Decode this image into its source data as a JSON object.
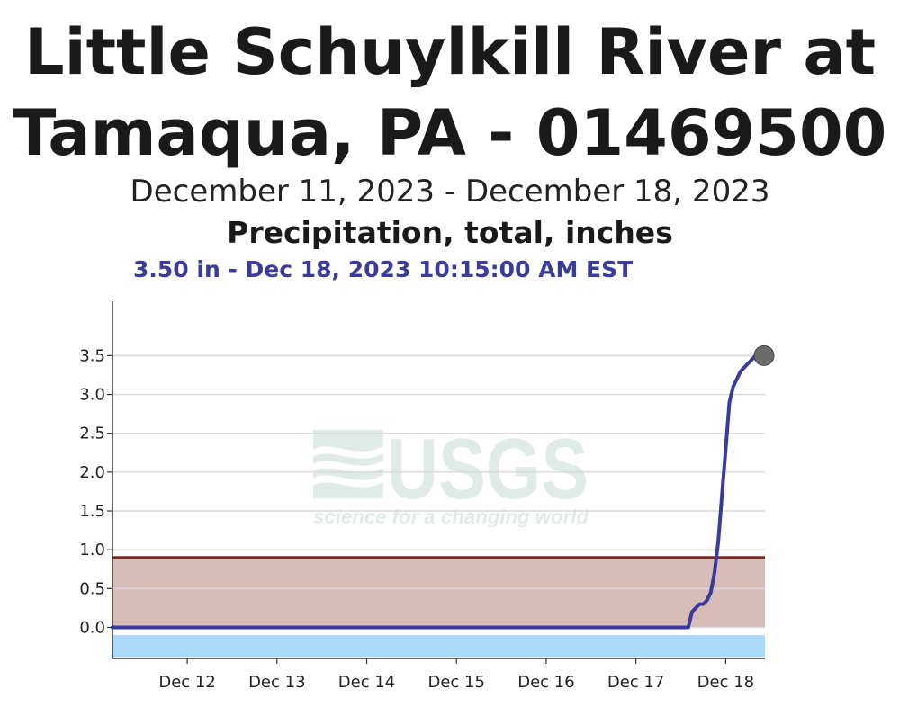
{
  "header": {
    "title_line1": "Little Schuylkill River at",
    "title_line2": "Tamaqua, PA - 01469500",
    "date_range": "December 11, 2023 - December 18, 2023",
    "parameter": "Precipitation, total, inches",
    "latest_value": "3.50 in - Dec 18, 2023 10:15:00 AM EST"
  },
  "watermark": {
    "logo_text": "USGS",
    "tagline": "science for a changing world"
  },
  "colors": {
    "series": "#3a3a9e",
    "threshold_line": "#7a2a1e",
    "threshold_fill": "#d4b5b0",
    "below_zero_band": "#a9d8fb",
    "grid": "#d9d9d9",
    "latest_dot": "#6b6b6b"
  },
  "chart_data": {
    "type": "line",
    "title": "Precipitation, total, inches",
    "xlabel": "",
    "ylabel": "",
    "ylim": [
      -0.4,
      4.2
    ],
    "yticks": [
      0.0,
      0.5,
      1.0,
      1.5,
      2.0,
      2.5,
      3.0,
      3.5
    ],
    "ytick_labels": [
      "0.0",
      "0.5",
      "1.0",
      "1.5",
      "2.0",
      "2.5",
      "3.0",
      "3.5"
    ],
    "xlim": [
      "2023-12-11T04:00",
      "2023-12-18T10:30"
    ],
    "xticks": [
      "2023-12-12T00:00",
      "2023-12-13T00:00",
      "2023-12-14T00:00",
      "2023-12-15T00:00",
      "2023-12-16T00:00",
      "2023-12-17T00:00",
      "2023-12-18T00:00"
    ],
    "xtick_labels": [
      "Dec 12",
      "Dec 13",
      "Dec 14",
      "Dec 15",
      "Dec 16",
      "Dec 17",
      "Dec 18"
    ],
    "grid": true,
    "threshold": {
      "value": 0.9,
      "fill_from": 0.0
    },
    "below_zero_band": [
      -0.38,
      -0.1
    ],
    "series": [
      {
        "x": [
          "2023-12-11T04:00",
          "2023-12-17T14:00",
          "2023-12-17T15:00",
          "2023-12-17T16:00",
          "2023-12-17T17:00",
          "2023-12-17T18:00",
          "2023-12-17T19:00",
          "2023-12-17T20:00",
          "2023-12-17T21:00",
          "2023-12-17T22:00",
          "2023-12-17T23:00",
          "2023-12-18T00:00",
          "2023-12-18T01:00",
          "2023-12-18T02:00",
          "2023-12-18T03:00",
          "2023-12-18T04:00",
          "2023-12-18T05:00",
          "2023-12-18T06:00",
          "2023-12-18T07:00",
          "2023-12-18T08:00",
          "2023-12-18T09:00",
          "2023-12-18T10:15"
        ],
        "y": [
          0.0,
          0.0,
          0.2,
          0.25,
          0.3,
          0.3,
          0.35,
          0.45,
          0.7,
          1.1,
          1.7,
          2.3,
          2.9,
          3.1,
          3.2,
          3.3,
          3.35,
          3.4,
          3.45,
          3.5,
          3.5,
          3.5
        ]
      }
    ],
    "latest_point": {
      "x": "2023-12-18T10:15",
      "y": 3.5
    }
  }
}
